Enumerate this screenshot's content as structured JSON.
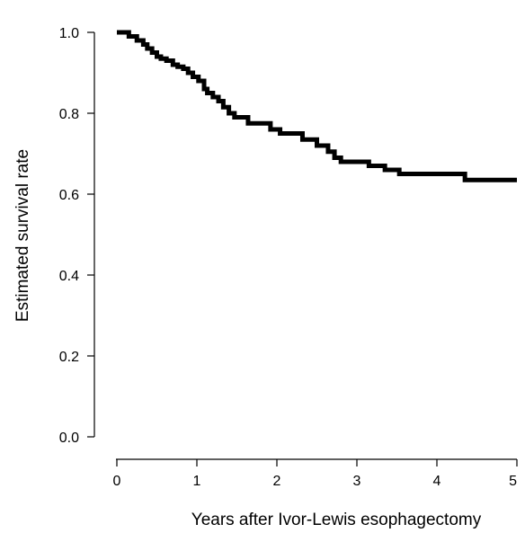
{
  "chart_data": {
    "type": "line",
    "style": "step",
    "title": "",
    "xlabel": "Years after Ivor-Lewis esophagectomy",
    "ylabel": "Estimated survival rate",
    "xlim": [
      0,
      5
    ],
    "ylim": [
      0,
      1
    ],
    "xticks": [
      "0",
      "1",
      "2",
      "3",
      "4",
      "5"
    ],
    "yticks": [
      "0.0",
      "0.2",
      "0.4",
      "0.6",
      "0.8",
      "1.0"
    ],
    "grid": false,
    "line_color": "#000000",
    "series": [
      {
        "x": [
          0,
          0.15,
          0.25,
          0.33,
          0.38,
          0.44,
          0.5,
          0.55,
          0.62,
          0.7,
          0.76,
          0.83,
          0.89,
          0.95,
          1.02,
          1.09,
          1.13,
          1.2,
          1.27,
          1.33,
          1.4,
          1.47,
          1.64,
          1.92,
          2.04,
          2.32,
          2.5,
          2.64,
          2.72,
          2.8,
          3.15,
          3.35,
          3.53,
          4.35,
          5.0
        ],
        "y": [
          1.0,
          0.99,
          0.98,
          0.97,
          0.96,
          0.95,
          0.94,
          0.935,
          0.93,
          0.92,
          0.915,
          0.91,
          0.9,
          0.89,
          0.88,
          0.86,
          0.85,
          0.84,
          0.83,
          0.815,
          0.8,
          0.79,
          0.775,
          0.76,
          0.75,
          0.735,
          0.72,
          0.705,
          0.69,
          0.68,
          0.67,
          0.66,
          0.65,
          0.635,
          0.635
        ]
      }
    ]
  }
}
